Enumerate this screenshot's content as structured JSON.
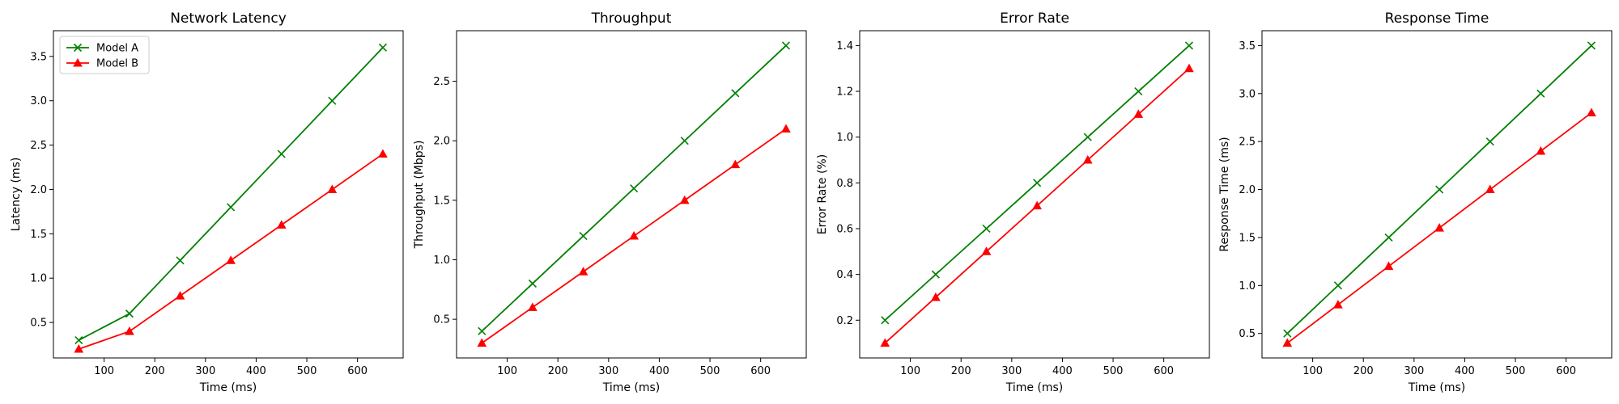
{
  "colors": {
    "model_a": "#008000",
    "model_b": "#ff0000",
    "axes": "#000000"
  },
  "legend_placement": "upper-left of first panel",
  "chart_data": [
    {
      "type": "line",
      "title": "Network Latency",
      "xlabel": "Time (ms)",
      "ylabel": "Latency (ms)",
      "x": [
        50,
        150,
        250,
        350,
        450,
        550,
        650
      ],
      "xlim": [
        0,
        690
      ],
      "ylim": [
        0.1,
        3.79
      ],
      "xticks": [
        100,
        200,
        300,
        400,
        500,
        600
      ],
      "yticks": [
        0.5,
        1.0,
        1.5,
        2.0,
        2.5,
        3.0,
        3.5
      ],
      "ytick_labels": [
        "0.5",
        "1.0",
        "1.5",
        "2.0",
        "2.5",
        "3.0",
        "3.5"
      ],
      "grid": false,
      "legend": true,
      "series": [
        {
          "name": "Model A",
          "color": "#008000",
          "marker": "x",
          "values": [
            0.3,
            0.6,
            1.2,
            1.8,
            2.4,
            3.0,
            3.6
          ]
        },
        {
          "name": "Model B",
          "color": "#ff0000",
          "marker": "triangle",
          "values": [
            0.2,
            0.4,
            0.8,
            1.2,
            1.6,
            2.0,
            2.4
          ]
        }
      ]
    },
    {
      "type": "line",
      "title": "Throughput",
      "xlabel": "Time (ms)",
      "ylabel": "Throughput (Mbps)",
      "x": [
        50,
        150,
        250,
        350,
        450,
        550,
        650
      ],
      "xlim": [
        0,
        690
      ],
      "ylim": [
        0.175,
        2.925
      ],
      "xticks": [
        100,
        200,
        300,
        400,
        500,
        600
      ],
      "yticks": [
        0.5,
        1.0,
        1.5,
        2.0,
        2.5
      ],
      "ytick_labels": [
        "0.5",
        "1.0",
        "1.5",
        "2.0",
        "2.5"
      ],
      "grid": false,
      "legend": false,
      "series": [
        {
          "name": "Model A",
          "color": "#008000",
          "marker": "x",
          "values": [
            0.4,
            0.8,
            1.2,
            1.6,
            2.0,
            2.4,
            2.8
          ]
        },
        {
          "name": "Model B",
          "color": "#ff0000",
          "marker": "triangle",
          "values": [
            0.3,
            0.6,
            0.9,
            1.2,
            1.5,
            1.8,
            2.1
          ]
        }
      ]
    },
    {
      "type": "line",
      "title": "Error Rate",
      "xlabel": "Time (ms)",
      "ylabel": "Error Rate (%)",
      "x": [
        50,
        150,
        250,
        350,
        450,
        550,
        650
      ],
      "xlim": [
        0,
        690
      ],
      "ylim": [
        0.035,
        1.465
      ],
      "xticks": [
        100,
        200,
        300,
        400,
        500,
        600
      ],
      "yticks": [
        0.2,
        0.4,
        0.6,
        0.8,
        1.0,
        1.2,
        1.4
      ],
      "ytick_labels": [
        "0.2",
        "0.4",
        "0.6",
        "0.8",
        "1.0",
        "1.2",
        "1.4"
      ],
      "grid": false,
      "legend": false,
      "series": [
        {
          "name": "Model A",
          "color": "#008000",
          "marker": "x",
          "values": [
            0.2,
            0.4,
            0.6,
            0.8,
            1.0,
            1.2,
            1.4
          ]
        },
        {
          "name": "Model B",
          "color": "#ff0000",
          "marker": "triangle",
          "values": [
            0.1,
            0.3,
            0.5,
            0.7,
            0.9,
            1.1,
            1.3
          ]
        }
      ]
    },
    {
      "type": "line",
      "title": "Response Time",
      "xlabel": "Time (ms)",
      "ylabel": "Response Time (ms)",
      "x": [
        50,
        150,
        250,
        350,
        450,
        550,
        650
      ],
      "xlim": [
        0,
        690
      ],
      "ylim": [
        0.245,
        3.655
      ],
      "xticks": [
        100,
        200,
        300,
        400,
        500,
        600
      ],
      "yticks": [
        0.5,
        1.0,
        1.5,
        2.0,
        2.5,
        3.0,
        3.5
      ],
      "ytick_labels": [
        "0.5",
        "1.0",
        "1.5",
        "2.0",
        "2.5",
        "3.0",
        "3.5"
      ],
      "grid": false,
      "legend": false,
      "series": [
        {
          "name": "Model A",
          "color": "#008000",
          "marker": "x",
          "values": [
            0.5,
            1.0,
            1.5,
            2.0,
            2.5,
            3.0,
            3.5
          ]
        },
        {
          "name": "Model B",
          "color": "#ff0000",
          "marker": "triangle",
          "values": [
            0.4,
            0.8,
            1.2,
            1.6,
            2.0,
            2.4,
            2.8
          ]
        }
      ]
    }
  ]
}
